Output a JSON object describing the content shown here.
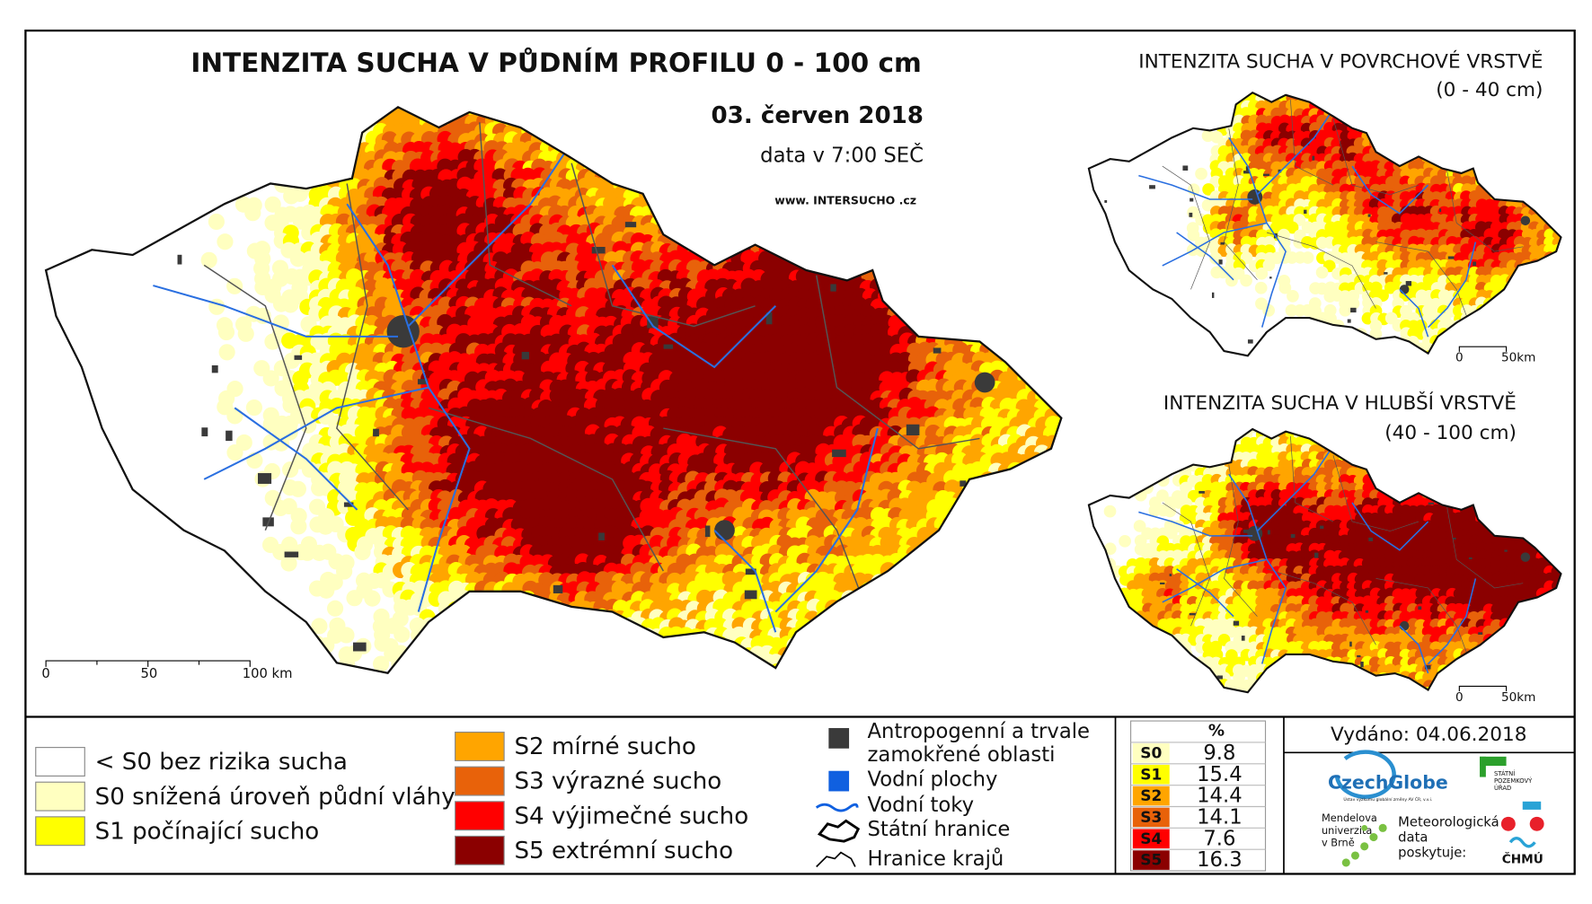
{
  "main_map": {
    "title": "INTENZITA SUCHA V PŮDNÍM PROFILU 0 - 100 cm",
    "date": "03. červen 2018",
    "time": "data v 7:00 SEČ",
    "website": "www. INTERSUCHO .cz",
    "scale_labels": [
      "0",
      "50",
      "100 km"
    ]
  },
  "inset_top": {
    "title": "INTENZITA SUCHA V POVRCHOVÉ VRSTVĚ",
    "depth": "(0 - 40 cm)",
    "scale_labels": [
      "0",
      "50km"
    ]
  },
  "inset_bottom": {
    "title": "INTENZITA SUCHA V HLUBŠÍ VRSTVĚ",
    "depth": "(40 - 100 cm)",
    "scale_labels": [
      "0",
      "50km"
    ]
  },
  "legend": {
    "classes": [
      {
        "label": "< S0 bez rizika sucha",
        "color": "#ffffff"
      },
      {
        "label": "S0 snížená úroveň půdní vláhy",
        "color": "#ffffc0"
      },
      {
        "label": "S1 počínající sucho",
        "color": "#ffff00"
      },
      {
        "label": "S2 mírné sucho",
        "color": "#ffa500"
      },
      {
        "label": "S3 výrazné sucho",
        "color": "#e8620a"
      },
      {
        "label": "S4 výjimečné sucho",
        "color": "#ff0000"
      },
      {
        "label": "S5 extrémní sucho",
        "color": "#8b0000"
      }
    ],
    "features": [
      {
        "label": [
          "Antropogenní a trvale",
          "zamokřené oblasti"
        ]
      },
      {
        "label": [
          "Vodní plochy"
        ]
      },
      {
        "label": [
          "Vodní toky"
        ]
      },
      {
        "label": [
          "Státní hranice"
        ]
      },
      {
        "label": [
          "Hranice krajů"
        ]
      }
    ]
  },
  "stats": {
    "header": "%",
    "rows": [
      {
        "label": "S0",
        "value": "9.8",
        "color": "#ffffc0"
      },
      {
        "label": "S1",
        "value": "15.4",
        "color": "#ffff00"
      },
      {
        "label": "S2",
        "value": "14.4",
        "color": "#ffa500"
      },
      {
        "label": "S3",
        "value": "14.1",
        "color": "#e8620a"
      },
      {
        "label": "S4",
        "value": "7.6",
        "color": "#ff0000"
      },
      {
        "label": "S5",
        "value": "16.3",
        "color": "#8b0000"
      }
    ]
  },
  "issued": "Vydáno: 04.06.2018",
  "logos": {
    "czechglobe": "CzechGlobe",
    "czechglobe_sub": "Ústav výzkumu globální změny AV ČR, v.v.i.",
    "spu": [
      "STÁTNÍ",
      "POZEMKOVÝ",
      "ÚŘAD"
    ],
    "mendel": [
      "Mendelova",
      "univerzita",
      "v Brně"
    ],
    "chmu_note": [
      "Meteorologická",
      "data",
      "poskytuje:"
    ],
    "chmu": "ČHMÚ"
  }
}
